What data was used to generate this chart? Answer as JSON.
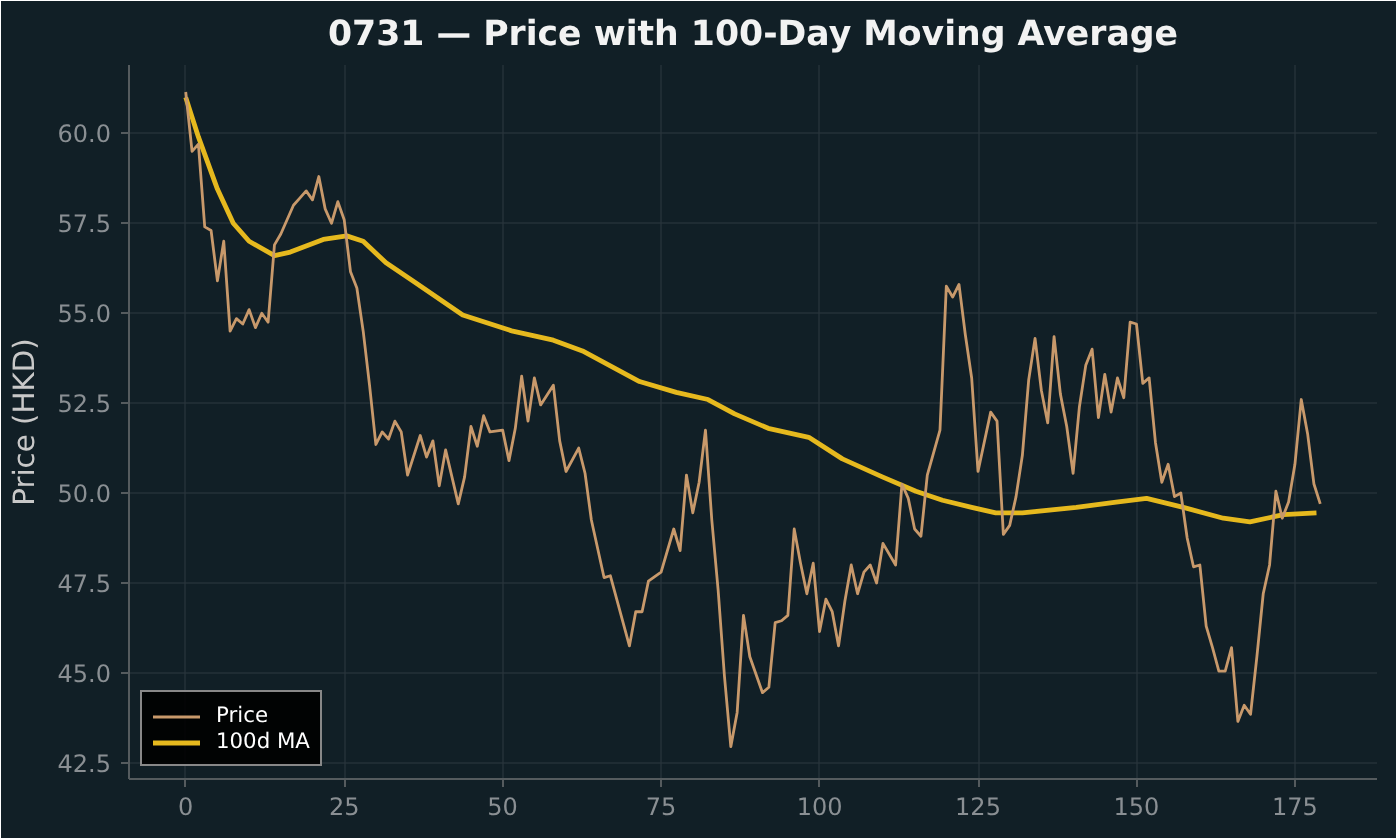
{
  "chart_data": {
    "type": "line",
    "title": "0731 — Price with 100-Day Moving Average",
    "ylabel": "Price (HKD)",
    "xlim": [
      -8.95,
      187.95
    ],
    "xticks": [
      0,
      25,
      50,
      75,
      100,
      125,
      150,
      175
    ],
    "ylim": [
      42.05,
      61.9
    ],
    "yticks": [
      {
        "value": 42.5,
        "label": "42.5"
      },
      {
        "value": 45,
        "label": "45.0"
      },
      {
        "value": 47.5,
        "label": "47.5"
      },
      {
        "value": 50,
        "label": "50.0"
      },
      {
        "value": 52.5,
        "label": "52.5"
      },
      {
        "value": 55,
        "label": "55.0"
      },
      {
        "value": 57.5,
        "label": "57.5"
      },
      {
        "value": 60,
        "label": "60.0"
      }
    ],
    "grid": true,
    "legend": "bottom left",
    "line_style": "solid",
    "marker": "none",
    "series": [
      {
        "name": "Price",
        "color": "#c8996b",
        "x": [
          0,
          1,
          2,
          3,
          4,
          5,
          6,
          7,
          8,
          9,
          10,
          11,
          12,
          13,
          14,
          15,
          17,
          18,
          19,
          20,
          21,
          22,
          23,
          24,
          25,
          26,
          27,
          28,
          29,
          30,
          31,
          32,
          33,
          34,
          35,
          37,
          38,
          39,
          40,
          41,
          42,
          43,
          44,
          45,
          46,
          47,
          48,
          50,
          51,
          52,
          53,
          54,
          55,
          56,
          58,
          59,
          60,
          62,
          63,
          64,
          66,
          67,
          70,
          71,
          72,
          73,
          75,
          77,
          78,
          79,
          80,
          81,
          82,
          83,
          84,
          85,
          86,
          87,
          88,
          89,
          91,
          92,
          93,
          94,
          95,
          96,
          97,
          98,
          99,
          100,
          101,
          102,
          103,
          104,
          105,
          106,
          107,
          108,
          109,
          110,
          112,
          113,
          114,
          115,
          116,
          117,
          119,
          120,
          121,
          122,
          123,
          124,
          125,
          127,
          128,
          129,
          130,
          131,
          132,
          133,
          134,
          135,
          136,
          137,
          138,
          139,
          140,
          141,
          142,
          143,
          144,
          145,
          146,
          147,
          148,
          149,
          150,
          151,
          152,
          153,
          154,
          155,
          156,
          157,
          158,
          159,
          160,
          161,
          162,
          163,
          164,
          165,
          166,
          167,
          168,
          169,
          170,
          171,
          172,
          173,
          174,
          175,
          176,
          177,
          178,
          179
        ],
        "values": [
          61.15,
          59.5,
          59.7,
          57.4,
          57.3,
          55.9,
          57.0,
          54.5,
          54.85,
          54.7,
          55.1,
          54.6,
          55.0,
          54.75,
          56.9,
          57.2,
          58.0,
          58.2,
          58.4,
          58.15,
          58.8,
          57.9,
          57.5,
          58.1,
          57.6,
          56.15,
          55.7,
          54.5,
          53.0,
          51.35,
          51.7,
          51.5,
          52.0,
          51.7,
          50.5,
          51.6,
          51.0,
          51.45,
          50.2,
          51.2,
          50.45,
          49.7,
          50.45,
          51.85,
          51.3,
          52.15,
          51.7,
          51.75,
          50.9,
          51.8,
          53.25,
          52.0,
          53.2,
          52.45,
          53.0,
          51.45,
          50.6,
          51.25,
          50.55,
          49.25,
          47.65,
          47.7,
          45.75,
          46.7,
          46.7,
          47.55,
          47.8,
          49.0,
          48.4,
          50.5,
          49.45,
          50.3,
          51.75,
          49.25,
          47.3,
          44.9,
          42.95,
          43.9,
          46.6,
          45.45,
          44.45,
          44.6,
          46.4,
          46.45,
          46.6,
          49.0,
          48.05,
          47.2,
          48.05,
          46.15,
          47.05,
          46.7,
          45.75,
          47.0,
          48.0,
          47.2,
          47.8,
          48.0,
          47.5,
          48.6,
          48.0,
          50.25,
          49.85,
          49.0,
          48.8,
          50.5,
          51.75,
          55.75,
          55.45,
          55.8,
          54.4,
          53.2,
          50.6,
          52.25,
          52.0,
          48.85,
          49.1,
          49.9,
          51.05,
          53.15,
          54.3,
          52.85,
          51.95,
          54.35,
          52.75,
          51.85,
          50.55,
          52.4,
          53.55,
          54.0,
          52.1,
          53.3,
          52.25,
          53.2,
          52.65,
          54.75,
          54.7,
          53.05,
          53.2,
          51.4,
          50.3,
          50.8,
          49.9,
          50.0,
          48.75,
          47.95,
          48.0,
          46.3,
          45.7,
          45.05,
          45.05,
          45.7,
          43.65,
          44.1,
          43.85,
          45.45,
          47.2,
          48.0,
          50.05,
          49.3,
          49.75,
          50.8,
          52.6,
          51.65,
          50.25,
          49.7
        ]
      },
      {
        "name": "100d MA",
        "color": "#e6b91e",
        "x": [
          0,
          2,
          5,
          7.5,
          10,
          14,
          16.5,
          21.7,
          25.4,
          28,
          31.6,
          35.8,
          43.7,
          51.6,
          58,
          62.6,
          71.6,
          77.4,
          82.4,
          86.6,
          91.9,
          98.3,
          103.6,
          109.9,
          115.2,
          119.4,
          124,
          127.8,
          132,
          140.5,
          146.8,
          151.6,
          157.4,
          163.7,
          167.9,
          173.2,
          178.4
        ],
        "values": [
          61.0,
          59.9,
          58.45,
          57.5,
          57.0,
          56.6,
          56.7,
          57.05,
          57.15,
          57.0,
          56.4,
          55.9,
          54.95,
          54.5,
          54.25,
          53.95,
          53.1,
          52.8,
          52.6,
          52.2,
          51.8,
          51.55,
          50.95,
          50.45,
          50.05,
          49.8,
          49.6,
          49.45,
          49.45,
          49.6,
          49.75,
          49.85,
          49.6,
          49.3,
          49.2,
          49.4,
          49.45
        ]
      }
    ]
  }
}
